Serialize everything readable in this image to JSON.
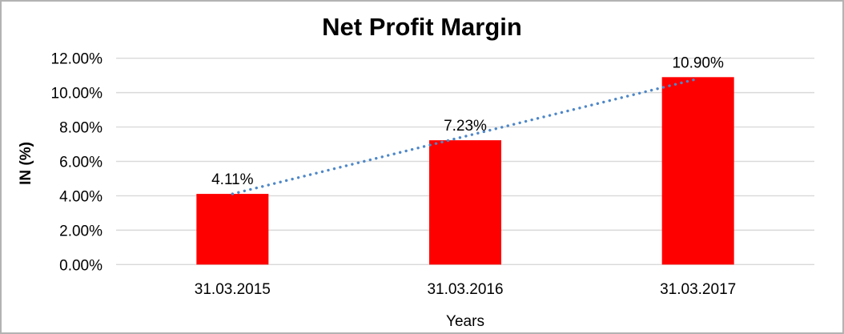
{
  "window": {
    "background": "#FFFFFF",
    "border_color": "#B3B3B3"
  },
  "chart_data": {
    "type": "bar",
    "title": "Net Profit Margin",
    "categories": [
      "31.03.2015",
      "31.03.2016",
      "31.03.2017"
    ],
    "series": [
      {
        "name": "Net Profit Margin",
        "values": [
          4.11,
          7.23,
          10.9
        ]
      }
    ],
    "value_labels": [
      "4.11%",
      "7.23%",
      "10.90%"
    ],
    "xlabel": "Years",
    "ylabel": "IN (%)",
    "ylim": [
      0,
      12
    ],
    "ytick_step": 2,
    "ytick_labels": [
      "0.00%",
      "2.00%",
      "4.00%",
      "6.00%",
      "8.00%",
      "10.00%",
      "12.00%"
    ],
    "grid": true,
    "legend": "none",
    "colors": {
      "bar": "#FF0000",
      "gridline": "#D9D9D9",
      "trendline": "#4E87C8",
      "text": "#000000"
    },
    "trendline": {
      "style": "dotted",
      "from_category": "31.03.2015",
      "from_value": 4.11,
      "to_category": "31.03.2017",
      "to_value": 10.9
    }
  }
}
